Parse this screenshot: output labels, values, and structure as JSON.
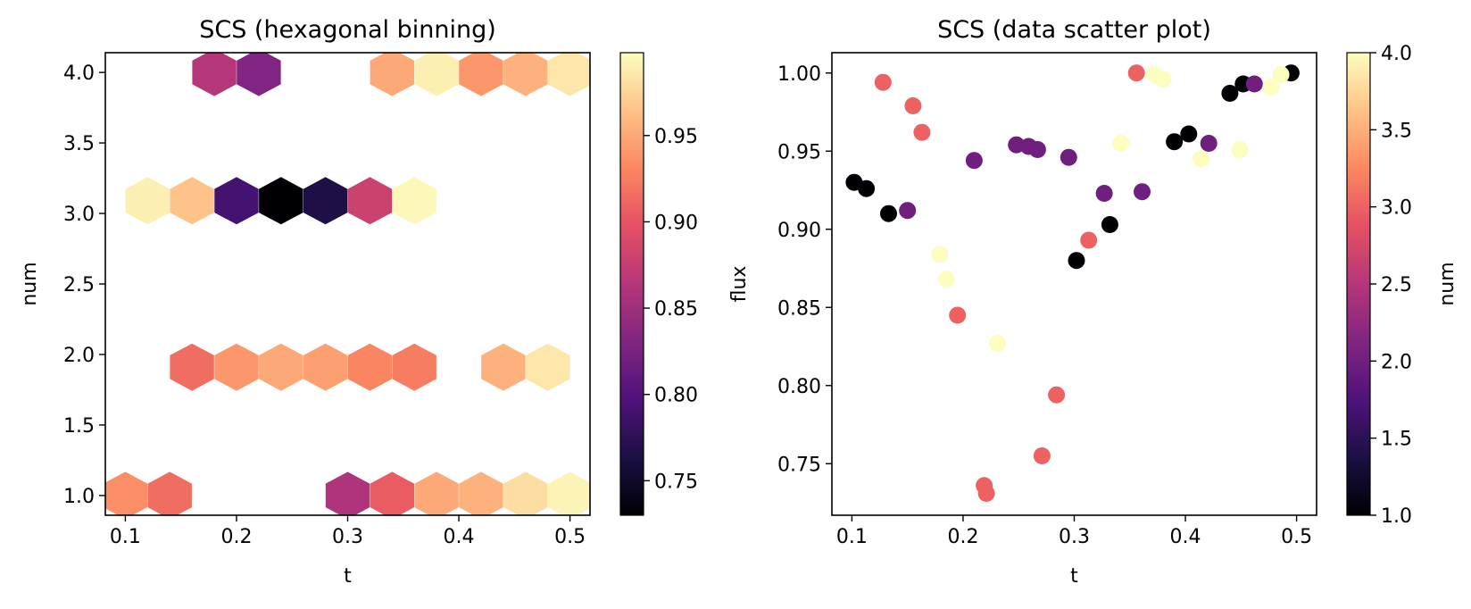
{
  "colormap": {
    "name": "magma",
    "stops": [
      "#000004",
      "#1c1044",
      "#4f127b",
      "#812581",
      "#b5367a",
      "#e55064",
      "#fb8761",
      "#fec287",
      "#fcfdbf"
    ]
  },
  "chart_data": [
    {
      "type": "hexbin",
      "title": "SCS (hexagonal binning)",
      "xlabel": "t",
      "ylabel": "num",
      "xlim": [
        0.082,
        0.518
      ],
      "ylim": [
        0.86,
        4.14
      ],
      "xticks": [
        "0.1",
        "0.2",
        "0.3",
        "0.4",
        "0.5"
      ],
      "xtick_values": [
        0.1,
        0.2,
        0.3,
        0.4,
        0.5
      ],
      "yticks": [
        "1.0",
        "1.5",
        "2.0",
        "2.5",
        "3.0",
        "3.5",
        "4.0"
      ],
      "ytick_values": [
        1.0,
        1.5,
        2.0,
        2.5,
        3.0,
        3.5,
        4.0
      ],
      "colorbar": {
        "range": [
          0.73,
          0.998
        ],
        "ticks": [
          "0.75",
          "0.80",
          "0.85",
          "0.90",
          "0.95"
        ],
        "tick_values": [
          0.75,
          0.8,
          0.85,
          0.9,
          0.95
        ]
      },
      "cells": [
        {
          "x": 0.1,
          "y": 1.0,
          "value": 0.935
        },
        {
          "x": 0.14,
          "y": 1.0,
          "value": 0.915
        },
        {
          "x": 0.3,
          "y": 1.0,
          "value": 0.86
        },
        {
          "x": 0.34,
          "y": 1.0,
          "value": 0.905
        },
        {
          "x": 0.38,
          "y": 1.0,
          "value": 0.95
        },
        {
          "x": 0.42,
          "y": 1.0,
          "value": 0.955
        },
        {
          "x": 0.46,
          "y": 1.0,
          "value": 0.98
        },
        {
          "x": 0.5,
          "y": 1.0,
          "value": 0.993
        },
        {
          "x": 0.16,
          "y": 1.91,
          "value": 0.915
        },
        {
          "x": 0.2,
          "y": 1.91,
          "value": 0.94
        },
        {
          "x": 0.24,
          "y": 1.91,
          "value": 0.95
        },
        {
          "x": 0.28,
          "y": 1.91,
          "value": 0.945
        },
        {
          "x": 0.32,
          "y": 1.91,
          "value": 0.93
        },
        {
          "x": 0.36,
          "y": 1.91,
          "value": 0.925
        },
        {
          "x": 0.44,
          "y": 1.91,
          "value": 0.955
        },
        {
          "x": 0.48,
          "y": 1.91,
          "value": 0.985
        },
        {
          "x": 0.12,
          "y": 3.09,
          "value": 0.99
        },
        {
          "x": 0.16,
          "y": 3.09,
          "value": 0.965
        },
        {
          "x": 0.2,
          "y": 3.09,
          "value": 0.79
        },
        {
          "x": 0.24,
          "y": 3.09,
          "value": 0.73
        },
        {
          "x": 0.28,
          "y": 3.09,
          "value": 0.765
        },
        {
          "x": 0.32,
          "y": 3.09,
          "value": 0.88
        },
        {
          "x": 0.36,
          "y": 3.09,
          "value": 0.995
        },
        {
          "x": 0.18,
          "y": 4.0,
          "value": 0.865
        },
        {
          "x": 0.22,
          "y": 4.0,
          "value": 0.83
        },
        {
          "x": 0.34,
          "y": 4.0,
          "value": 0.95
        },
        {
          "x": 0.38,
          "y": 4.0,
          "value": 0.99
        },
        {
          "x": 0.42,
          "y": 4.0,
          "value": 0.94
        },
        {
          "x": 0.46,
          "y": 4.0,
          "value": 0.955
        },
        {
          "x": 0.5,
          "y": 4.0,
          "value": 0.985
        }
      ]
    },
    {
      "type": "scatter",
      "title": "SCS (data scatter plot)",
      "xlabel": "t",
      "ylabel": "flux",
      "xlim": [
        0.082,
        0.518
      ],
      "ylim": [
        0.717,
        1.013
      ],
      "xticks": [
        "0.1",
        "0.2",
        "0.3",
        "0.4",
        "0.5"
      ],
      "xtick_values": [
        0.1,
        0.2,
        0.3,
        0.4,
        0.5
      ],
      "yticks": [
        "0.75",
        "0.80",
        "0.85",
        "0.90",
        "0.95",
        "1.00"
      ],
      "ytick_values": [
        0.75,
        0.8,
        0.85,
        0.9,
        0.95,
        1.0
      ],
      "colorbar": {
        "label": "num",
        "range": [
          1.0,
          4.0
        ],
        "ticks": [
          "1.0",
          "1.5",
          "2.0",
          "2.5",
          "3.0",
          "3.5",
          "4.0"
        ],
        "tick_values": [
          1.0,
          1.5,
          2.0,
          2.5,
          3.0,
          3.5,
          4.0
        ]
      },
      "points": [
        {
          "x": 0.102,
          "y": 0.93,
          "num": 1
        },
        {
          "x": 0.113,
          "y": 0.926,
          "num": 1
        },
        {
          "x": 0.133,
          "y": 0.91,
          "num": 1
        },
        {
          "x": 0.302,
          "y": 0.88,
          "num": 1
        },
        {
          "x": 0.332,
          "y": 0.903,
          "num": 1
        },
        {
          "x": 0.39,
          "y": 0.956,
          "num": 1
        },
        {
          "x": 0.403,
          "y": 0.961,
          "num": 1
        },
        {
          "x": 0.44,
          "y": 0.987,
          "num": 1
        },
        {
          "x": 0.452,
          "y": 0.993,
          "num": 1
        },
        {
          "x": 0.495,
          "y": 1.0,
          "num": 1
        },
        {
          "x": 0.15,
          "y": 0.912,
          "num": 2
        },
        {
          "x": 0.21,
          "y": 0.944,
          "num": 2
        },
        {
          "x": 0.248,
          "y": 0.954,
          "num": 2
        },
        {
          "x": 0.259,
          "y": 0.953,
          "num": 2
        },
        {
          "x": 0.267,
          "y": 0.951,
          "num": 2
        },
        {
          "x": 0.295,
          "y": 0.946,
          "num": 2
        },
        {
          "x": 0.327,
          "y": 0.923,
          "num": 2
        },
        {
          "x": 0.361,
          "y": 0.924,
          "num": 2
        },
        {
          "x": 0.421,
          "y": 0.955,
          "num": 2
        },
        {
          "x": 0.462,
          "y": 0.993,
          "num": 2
        },
        {
          "x": 0.128,
          "y": 0.994,
          "num": 3
        },
        {
          "x": 0.155,
          "y": 0.979,
          "num": 3
        },
        {
          "x": 0.163,
          "y": 0.962,
          "num": 3
        },
        {
          "x": 0.195,
          "y": 0.845,
          "num": 3
        },
        {
          "x": 0.219,
          "y": 0.736,
          "num": 3
        },
        {
          "x": 0.221,
          "y": 0.731,
          "num": 3
        },
        {
          "x": 0.271,
          "y": 0.755,
          "num": 3
        },
        {
          "x": 0.284,
          "y": 0.794,
          "num": 3
        },
        {
          "x": 0.313,
          "y": 0.893,
          "num": 3
        },
        {
          "x": 0.356,
          "y": 1.0,
          "num": 3
        },
        {
          "x": 0.179,
          "y": 0.884,
          "num": 4
        },
        {
          "x": 0.185,
          "y": 0.868,
          "num": 4
        },
        {
          "x": 0.231,
          "y": 0.827,
          "num": 4
        },
        {
          "x": 0.342,
          "y": 0.955,
          "num": 4
        },
        {
          "x": 0.372,
          "y": 0.999,
          "num": 4
        },
        {
          "x": 0.38,
          "y": 0.996,
          "num": 4
        },
        {
          "x": 0.414,
          "y": 0.945,
          "num": 4
        },
        {
          "x": 0.449,
          "y": 0.951,
          "num": 4
        },
        {
          "x": 0.477,
          "y": 0.991,
          "num": 4
        },
        {
          "x": 0.486,
          "y": 0.999,
          "num": 4
        }
      ]
    }
  ]
}
